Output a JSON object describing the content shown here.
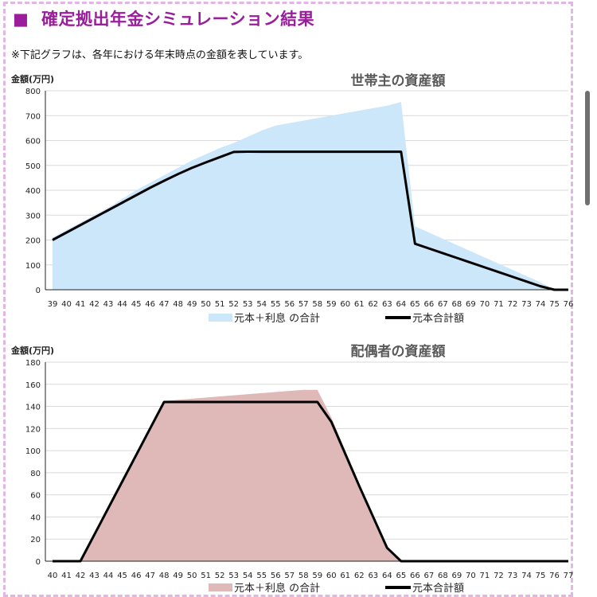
{
  "page": {
    "heading_marker": "■",
    "heading": "確定拠出年金シミュレーション結果",
    "note": "※下記グラフは、各年における年末時点の金額を表しています。"
  },
  "colors": {
    "heading": "#9a1e9c",
    "frame": "#e2b6e4",
    "area1": "#cce6fa",
    "area2": "#dfb9b8",
    "line": "#000000",
    "grid": "#d9d9d9"
  },
  "chart_data": [
    {
      "type": "area",
      "title": "世帯主の資産額",
      "ylabel": "金額(万円)",
      "ylim": [
        0,
        800
      ],
      "yticks": [
        0,
        100,
        200,
        300,
        400,
        500,
        600,
        700,
        800
      ],
      "x": [
        39,
        40,
        41,
        42,
        43,
        44,
        45,
        46,
        47,
        48,
        49,
        50,
        51,
        52,
        53,
        54,
        55,
        56,
        57,
        58,
        59,
        60,
        61,
        62,
        63,
        64,
        65,
        66,
        67,
        68,
        69,
        70,
        71,
        72,
        73,
        74,
        75,
        76
      ],
      "grid": true,
      "legend_position": "bottom",
      "series": [
        {
          "name": "元本＋利息 の合計",
          "kind": "area",
          "color": "#cce6fa",
          "values": [
            210,
            240,
            270,
            300,
            330,
            365,
            400,
            430,
            460,
            490,
            520,
            545,
            570,
            590,
            615,
            640,
            660,
            670,
            680,
            690,
            700,
            710,
            720,
            730,
            740,
            755,
            255,
            230,
            205,
            180,
            155,
            130,
            105,
            80,
            55,
            30,
            0,
            0
          ]
        },
        {
          "name": "元本合計額",
          "kind": "line",
          "color": "#000000",
          "values": [
            200,
            230,
            260,
            290,
            320,
            350,
            380,
            410,
            438,
            465,
            490,
            512,
            533,
            554,
            555,
            555,
            555,
            555,
            555,
            555,
            555,
            555,
            555,
            555,
            555,
            555,
            185,
            166,
            147,
            128,
            109,
            90,
            71,
            52,
            33,
            14,
            0,
            0
          ]
        }
      ]
    },
    {
      "type": "area",
      "title": "配偶者の資産額",
      "ylabel": "金額(万円)",
      "ylim": [
        0,
        180
      ],
      "yticks": [
        0,
        20,
        40,
        60,
        80,
        100,
        120,
        140,
        160,
        180
      ],
      "x": [
        40,
        41,
        42,
        43,
        44,
        45,
        46,
        47,
        48,
        49,
        50,
        51,
        52,
        53,
        54,
        55,
        56,
        57,
        58,
        59,
        60,
        61,
        62,
        63,
        64,
        65,
        66,
        67,
        68,
        69,
        70,
        71,
        72,
        73,
        74,
        75,
        76,
        77
      ],
      "grid": true,
      "legend_position": "bottom",
      "series": [
        {
          "name": "元本＋利息 の合計",
          "kind": "area",
          "color": "#dfb9b8",
          "values": [
            0,
            0,
            0,
            24,
            48,
            72,
            96,
            120,
            145,
            146,
            147,
            148,
            149,
            150,
            151,
            152,
            153,
            154,
            155,
            155,
            130,
            100,
            70,
            40,
            13,
            0,
            0,
            0,
            0,
            0,
            0,
            0,
            0,
            0,
            0,
            0,
            0,
            0
          ]
        },
        {
          "name": "元本合計額",
          "kind": "line",
          "color": "#000000",
          "values": [
            0,
            0,
            0,
            24,
            48,
            72,
            96,
            120,
            144,
            144,
            144,
            144,
            144,
            144,
            144,
            144,
            144,
            144,
            144,
            144,
            126,
            97,
            68,
            40,
            12,
            0,
            0,
            0,
            0,
            0,
            0,
            0,
            0,
            0,
            0,
            0,
            0,
            0
          ]
        }
      ]
    }
  ]
}
